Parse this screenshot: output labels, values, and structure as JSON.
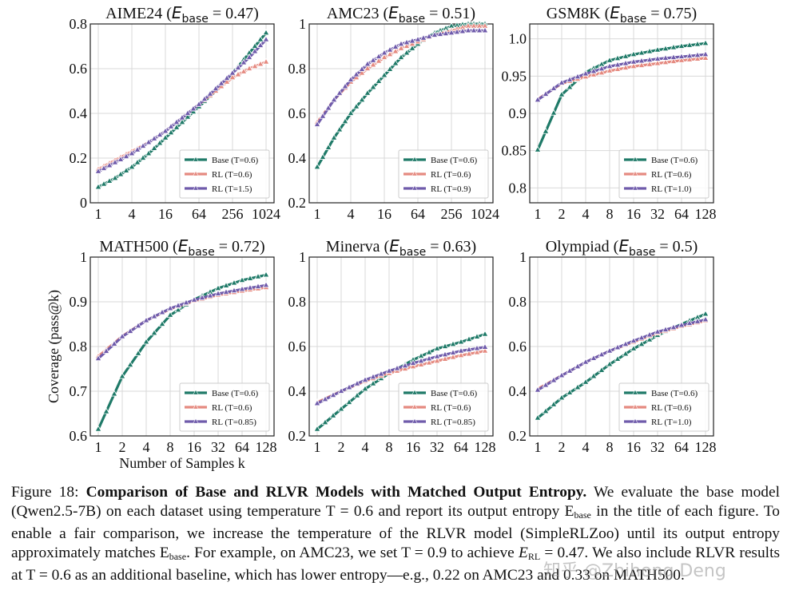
{
  "figure": {
    "ylabel": "Coverage (pass@k)",
    "xlabel": "Number of Samples k",
    "caption": {
      "figure_label": "Figure 18:",
      "bold_title": "Comparison of Base and RLVR Models with Matched Output Entropy.",
      "line1_rest": "We evaluate the base",
      "line2": "model (Qwen2.5-7B) on each dataset using temperature T = 0.6 and report its output entropy E",
      "line2_sub": "base",
      "line2_end": "in the title",
      "line3": "of each figure. To enable a fair comparison, we increase the temperature of the RLVR model (SimpleRLZoo)",
      "line4_a": "until its output entropy approximately matches E",
      "line4_sub": "base",
      "line4_b": ". For example, on AMC23, we set T = 0.9 to achieve",
      "line5_a": "E",
      "line5_sub": "RL",
      "line5_b": " = 0.47. We also include RLVR results at T = 0.6 as an additional baseline, which has lower entropy—e.g.,",
      "line6": "0.22 on AMC23 and 0.33 on MATH500."
    },
    "watermark": "知乎 @Zhihong Deng"
  },
  "colors": {
    "base": "#1f7a68",
    "rl_low": "#e58a80",
    "rl_matched": "#6f5bab",
    "grid": "#d9d9d9"
  },
  "chart_data": [
    {
      "type": "line",
      "title": "AIME24",
      "e_base": "0.47",
      "x_log2": [
        0,
        1,
        2,
        3,
        4,
        5,
        6,
        7,
        8,
        9,
        10
      ],
      "xticks": [
        "1",
        "4",
        "16",
        "64",
        "256",
        "1024"
      ],
      "xtick_log2": [
        0,
        2,
        4,
        6,
        8,
        10
      ],
      "yticks": [
        "0",
        "0.2",
        "0.4",
        "0.6",
        "0.8"
      ],
      "ylim": [
        0,
        0.8
      ],
      "series": [
        {
          "name": "Base (T=0.6)",
          "key": "base",
          "values": [
            0.07,
            0.11,
            0.16,
            0.22,
            0.29,
            0.36,
            0.43,
            0.5,
            0.58,
            0.67,
            0.76
          ]
        },
        {
          "name": "RL (T=0.6)",
          "key": "rl_low",
          "values": [
            0.15,
            0.19,
            0.23,
            0.27,
            0.32,
            0.38,
            0.44,
            0.5,
            0.56,
            0.6,
            0.63
          ]
        },
        {
          "name": "RL (T=1.5)",
          "key": "rl_matched",
          "values": [
            0.14,
            0.18,
            0.22,
            0.27,
            0.32,
            0.38,
            0.44,
            0.51,
            0.58,
            0.65,
            0.73
          ]
        }
      ]
    },
    {
      "type": "line",
      "title": "AMC23",
      "e_base": "0.51",
      "x_log2": [
        0,
        1,
        2,
        3,
        4,
        5,
        6,
        7,
        8,
        9,
        10
      ],
      "xticks": [
        "1",
        "4",
        "16",
        "64",
        "256",
        "1024"
      ],
      "xtick_log2": [
        0,
        2,
        4,
        6,
        8,
        10
      ],
      "yticks": [
        "0.2",
        "0.4",
        "0.6",
        "0.8",
        "1"
      ],
      "ylim": [
        0.2,
        1.0
      ],
      "series": [
        {
          "name": "Base (T=0.6)",
          "key": "base",
          "values": [
            0.36,
            0.49,
            0.6,
            0.69,
            0.77,
            0.85,
            0.91,
            0.96,
            0.99,
            1.0,
            1.0
          ]
        },
        {
          "name": "RL (T=0.6)",
          "key": "rl_low",
          "values": [
            0.56,
            0.66,
            0.74,
            0.8,
            0.85,
            0.89,
            0.92,
            0.95,
            0.97,
            0.99,
            0.99
          ]
        },
        {
          "name": "RL (T=0.9)",
          "key": "rl_matched",
          "values": [
            0.55,
            0.66,
            0.75,
            0.82,
            0.87,
            0.91,
            0.93,
            0.95,
            0.96,
            0.97,
            0.97
          ]
        }
      ]
    },
    {
      "type": "line",
      "title": "GSM8K",
      "e_base": "0.75",
      "x_log2": [
        0,
        1,
        2,
        3,
        4,
        5,
        6,
        7
      ],
      "xticks": [
        "1",
        "2",
        "4",
        "8",
        "16",
        "32",
        "64",
        "128"
      ],
      "xtick_log2": [
        0,
        1,
        2,
        3,
        4,
        5,
        6,
        7
      ],
      "yticks": [
        "0.8",
        "0.85",
        "0.9",
        "0.95",
        "1.0"
      ],
      "ylim": [
        0.78,
        1.02
      ],
      "series": [
        {
          "name": "Base (T=0.6)",
          "key": "base",
          "values": [
            0.851,
            0.925,
            0.955,
            0.971,
            0.979,
            0.985,
            0.99,
            0.994
          ]
        },
        {
          "name": "RL (T=0.6)",
          "key": "rl_low",
          "values": [
            0.919,
            0.94,
            0.949,
            0.957,
            0.963,
            0.967,
            0.971,
            0.974
          ]
        },
        {
          "name": "RL (T=1.0)",
          "key": "rl_matched",
          "values": [
            0.918,
            0.941,
            0.953,
            0.963,
            0.969,
            0.973,
            0.976,
            0.979
          ]
        }
      ]
    },
    {
      "type": "line",
      "title": "MATH500",
      "e_base": "0.72",
      "x_log2": [
        0,
        1,
        2,
        3,
        4,
        5,
        6,
        7
      ],
      "xticks": [
        "1",
        "2",
        "4",
        "8",
        "16",
        "32",
        "64",
        "128"
      ],
      "xtick_log2": [
        0,
        1,
        2,
        3,
        4,
        5,
        6,
        7
      ],
      "yticks": [
        "0.6",
        "0.7",
        "0.8",
        "0.9",
        "1"
      ],
      "ylim": [
        0.6,
        1.0
      ],
      "ylabel": "Coverage (pass@k)",
      "xlabel": "Number of Samples k",
      "series": [
        {
          "name": "Base (T=0.6)",
          "key": "base",
          "values": [
            0.615,
            0.733,
            0.81,
            0.87,
            0.905,
            0.93,
            0.948,
            0.96
          ]
        },
        {
          "name": "RL (T=0.6)",
          "key": "rl_low",
          "values": [
            0.778,
            0.823,
            0.858,
            0.884,
            0.902,
            0.915,
            0.924,
            0.932
          ]
        },
        {
          "name": "RL (T=0.85)",
          "key": "rl_matched",
          "values": [
            0.773,
            0.822,
            0.858,
            0.885,
            0.904,
            0.918,
            0.928,
            0.937
          ]
        }
      ]
    },
    {
      "type": "line",
      "title": "Minerva",
      "e_base": "0.63",
      "x_log2": [
        0,
        1,
        2,
        3,
        4,
        5,
        6,
        7
      ],
      "xticks": [
        "1",
        "2",
        "4",
        "8",
        "16",
        "32",
        "64",
        "128"
      ],
      "xtick_log2": [
        0,
        1,
        2,
        3,
        4,
        5,
        6,
        7
      ],
      "yticks": [
        "0.2",
        "0.4",
        "0.6",
        "0.8",
        "1"
      ],
      "ylim": [
        0.2,
        1.0
      ],
      "series": [
        {
          "name": "Base (T=0.6)",
          "key": "base",
          "values": [
            0.23,
            0.32,
            0.41,
            0.48,
            0.54,
            0.59,
            0.62,
            0.655
          ]
        },
        {
          "name": "RL (T=0.6)",
          "key": "rl_low",
          "values": [
            0.35,
            0.4,
            0.445,
            0.48,
            0.51,
            0.535,
            0.56,
            0.58
          ]
        },
        {
          "name": "RL (T=0.85)",
          "key": "rl_matched",
          "values": [
            0.345,
            0.4,
            0.45,
            0.49,
            0.525,
            0.555,
            0.58,
            0.597
          ]
        }
      ]
    },
    {
      "type": "line",
      "title": "Olympiad",
      "e_base": "0.5",
      "x_log2": [
        0,
        1,
        2,
        3,
        4,
        5,
        6,
        7
      ],
      "xticks": [
        "1",
        "2",
        "4",
        "8",
        "16",
        "32",
        "64",
        "128"
      ],
      "xtick_log2": [
        0,
        1,
        2,
        3,
        4,
        5,
        6,
        7
      ],
      "yticks": [
        "0.2",
        "0.4",
        "0.6",
        "0.8",
        "1"
      ],
      "ylim": [
        0.2,
        1.0
      ],
      "series": [
        {
          "name": "Base (T=0.6)",
          "key": "base",
          "values": [
            0.28,
            0.37,
            0.44,
            0.52,
            0.59,
            0.65,
            0.7,
            0.745
          ]
        },
        {
          "name": "RL (T=0.6)",
          "key": "rl_low",
          "values": [
            0.41,
            0.47,
            0.53,
            0.58,
            0.62,
            0.66,
            0.69,
            0.715
          ]
        },
        {
          "name": "RL (T=1.0)",
          "key": "rl_matched",
          "values": [
            0.405,
            0.47,
            0.53,
            0.58,
            0.625,
            0.665,
            0.695,
            0.72
          ]
        }
      ]
    }
  ]
}
